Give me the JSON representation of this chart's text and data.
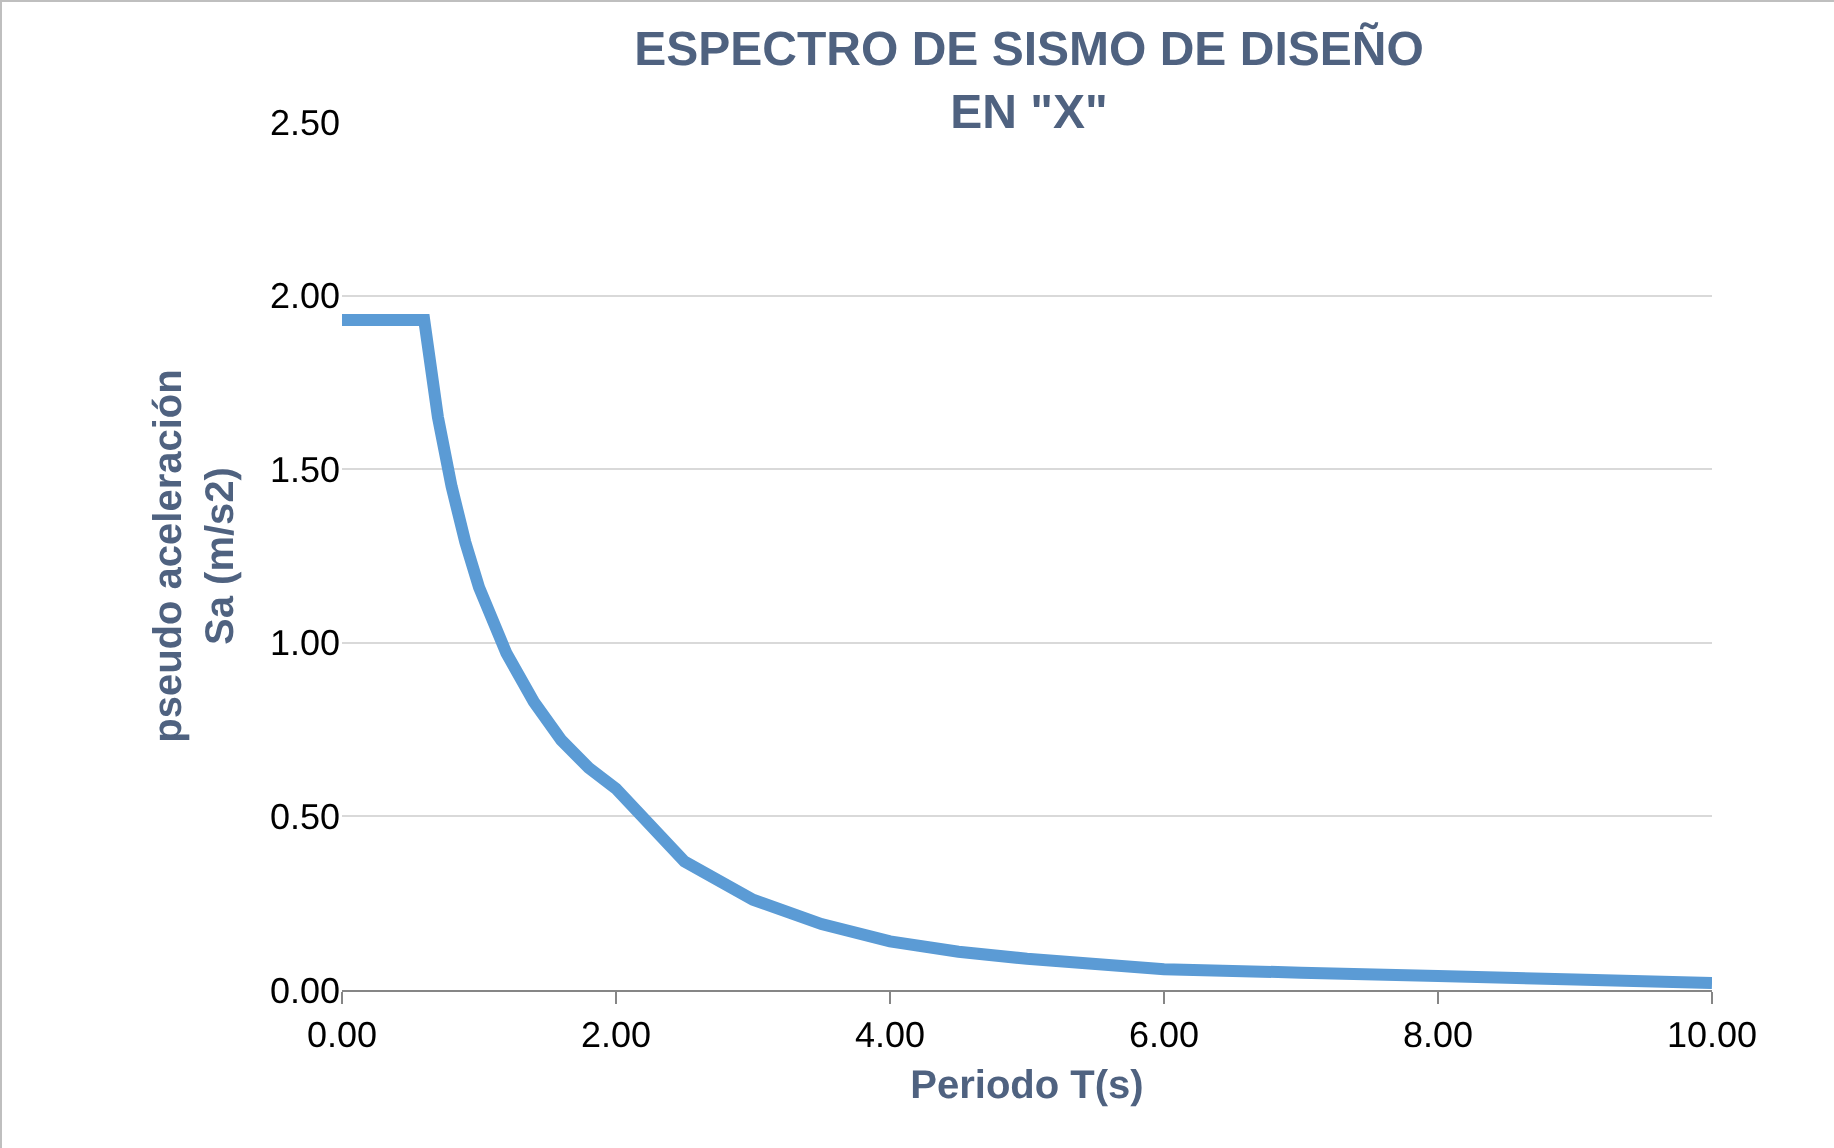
{
  "chart_data": {
    "type": "line",
    "title": "ESPECTRO DE SISMO DE DISEÑO\nEN \"X\"",
    "xlabel": "Periodo T(s)",
    "ylabel": "pseudo aceleración\nSa (m/s2)",
    "x": [
      0,
      0.6,
      0.7,
      0.8,
      0.9,
      1.0,
      1.2,
      1.4,
      1.6,
      1.8,
      2.0,
      2.5,
      3.0,
      3.5,
      4.0,
      4.5,
      5.0,
      6.0,
      7.0,
      8.0,
      9.0,
      10.0
    ],
    "series": [
      {
        "color": "#5b9bd5",
        "values": [
          1.93,
          1.93,
          1.65,
          1.45,
          1.29,
          1.16,
          0.97,
          0.83,
          0.72,
          0.64,
          0.58,
          0.37,
          0.26,
          0.19,
          0.14,
          0.11,
          0.09,
          0.06,
          0.05,
          0.04,
          0.03,
          0.02
        ]
      }
    ],
    "xlim": [
      0,
      10
    ],
    "xticks": [
      {
        "value": 0,
        "label": "0.00"
      },
      {
        "value": 2,
        "label": "2.00"
      },
      {
        "value": 4,
        "label": "4.00"
      },
      {
        "value": 6,
        "label": "6.00"
      },
      {
        "value": 8,
        "label": "8.00"
      },
      {
        "value": 10,
        "label": "10.00"
      }
    ],
    "ylim": [
      0,
      2.5
    ],
    "yticks": [
      {
        "value": 0,
        "label": "0.00"
      },
      {
        "value": 0.5,
        "label": "0.50"
      },
      {
        "value": 1,
        "label": "1.00"
      },
      {
        "value": 1.5,
        "label": "1.50"
      },
      {
        "value": 2,
        "label": "2.00"
      },
      {
        "value": 2.5,
        "label": "2.50"
      }
    ],
    "grid": "y",
    "legend": false,
    "marker": "none",
    "line_style": "solid"
  }
}
